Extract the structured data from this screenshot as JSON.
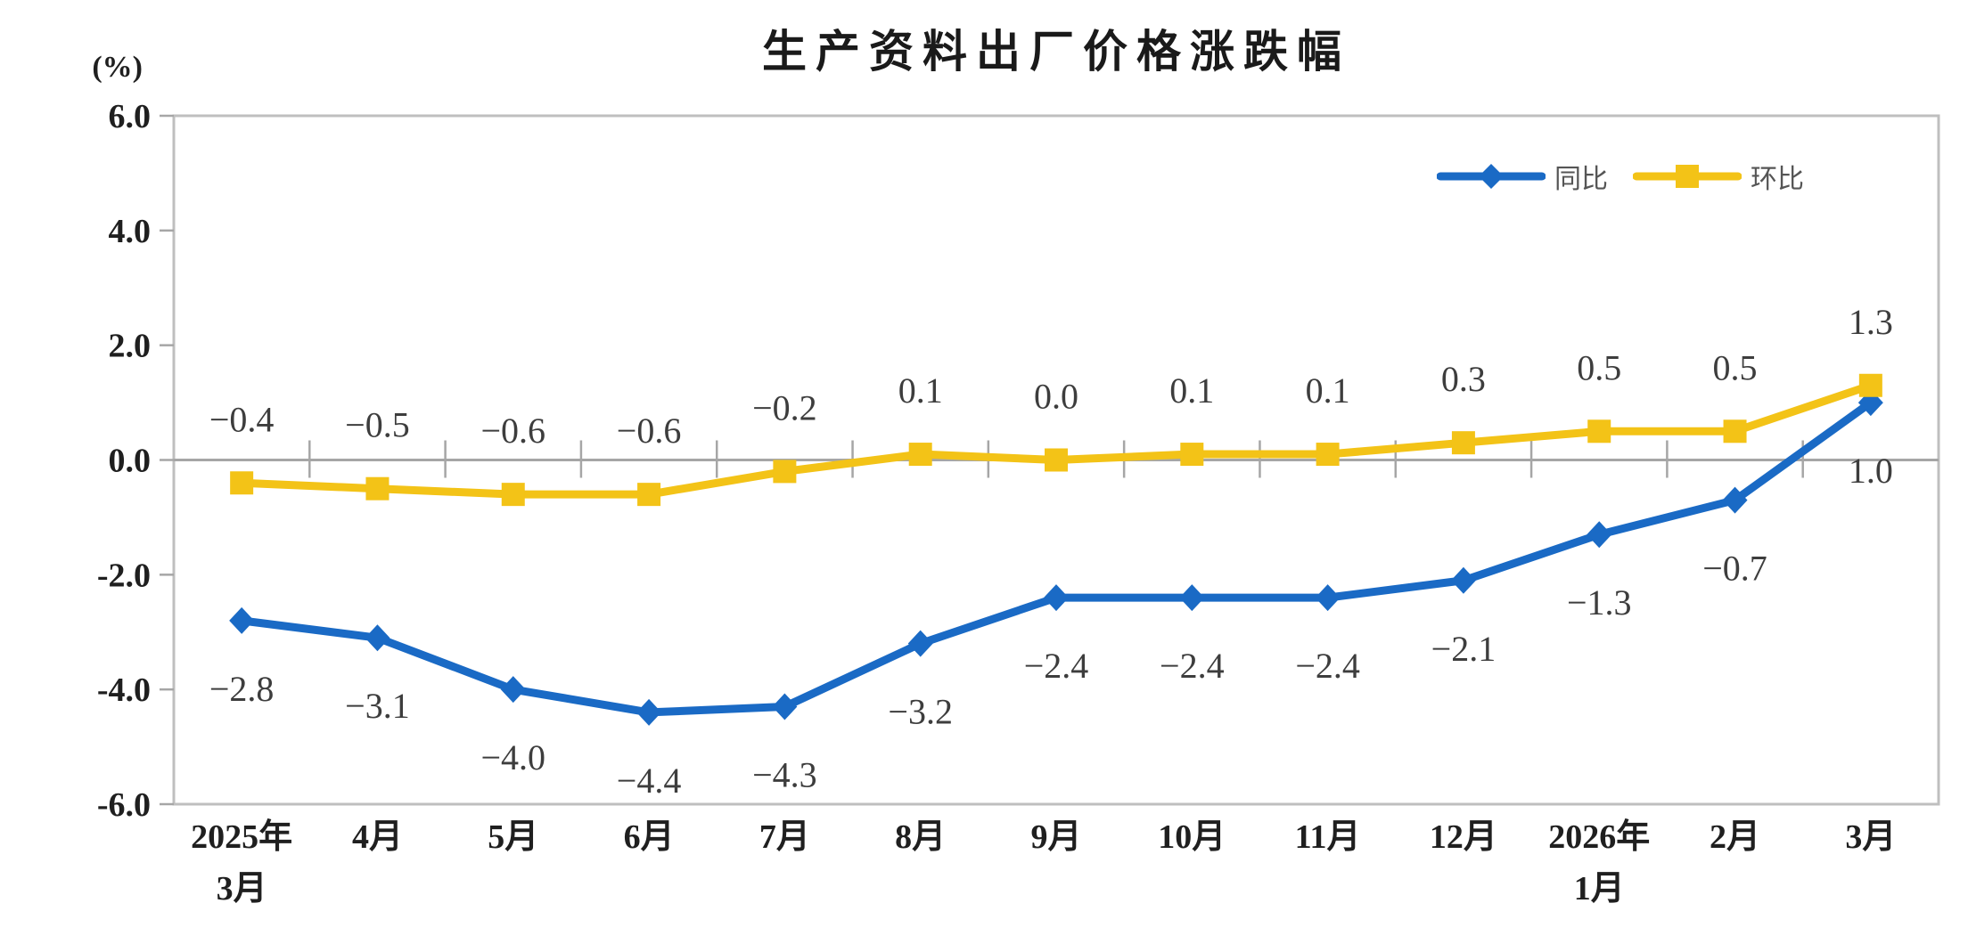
{
  "title": "生产资料出厂价格涨跌幅",
  "unit_label": "(%)",
  "colors": {
    "yoy_blue": "#1A6AC5",
    "mom_yellow": "#F3C317",
    "axis_gray": "#A6A6A6",
    "border_gray": "#BFBFBF",
    "label_gray": "#3d3d3d"
  },
  "legend": {
    "items": [
      {
        "label": "同比"
      },
      {
        "label": "环比"
      }
    ]
  },
  "chart_data": {
    "type": "line",
    "title": "生产资料出厂价格涨跌幅",
    "ylabel": "(%)",
    "ylim": [
      -6.0,
      6.0
    ],
    "ytick_step": 2.0,
    "yticks": [
      "6.0",
      "4.0",
      "2.0",
      "0.0",
      "-2.0",
      "-4.0",
      "-6.0"
    ],
    "grid": false,
    "legend_position": "top-right",
    "categories": [
      [
        "2025年",
        "3月"
      ],
      [
        "4月"
      ],
      [
        "5月"
      ],
      [
        "6月"
      ],
      [
        "7月"
      ],
      [
        "8月"
      ],
      [
        "9月"
      ],
      [
        "10月"
      ],
      [
        "11月"
      ],
      [
        "12月"
      ],
      [
        "2026年",
        "1月"
      ],
      [
        "2月"
      ],
      [
        "3月"
      ]
    ],
    "series": [
      {
        "name": "同比",
        "marker": "diamond",
        "color": "#1A6AC5",
        "label_position": "below",
        "values": [
          -2.8,
          -3.1,
          -4.0,
          -4.4,
          -4.3,
          -3.2,
          -2.4,
          -2.4,
          -2.4,
          -2.1,
          -1.3,
          -0.7,
          1.0
        ]
      },
      {
        "name": "环比",
        "marker": "square",
        "color": "#F3C317",
        "label_position": "above",
        "values": [
          -0.4,
          -0.5,
          -0.6,
          -0.6,
          -0.2,
          0.1,
          0.0,
          0.1,
          0.1,
          0.3,
          0.5,
          0.5,
          1.3
        ]
      }
    ]
  }
}
